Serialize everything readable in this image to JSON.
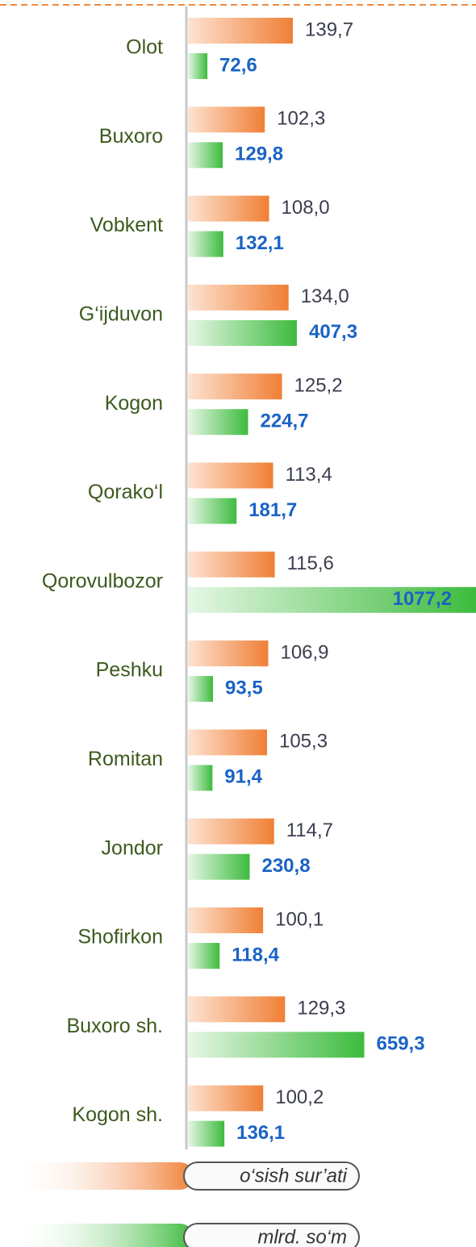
{
  "chart_data": {
    "type": "bar",
    "orientation": "horizontal",
    "categories": [
      "Olot",
      "Buxoro",
      "Vobkent",
      "G‘ijduvon",
      "Kogon",
      "Qorako‘l",
      "Qorovulbozor",
      "Peshku",
      "Romitan",
      "Jondor",
      "Shofirkon",
      "Buxoro sh.",
      "Kogon sh."
    ],
    "series": [
      {
        "name": "o‘sish sur’ati",
        "color": "#f07f35",
        "values": [
          139.7,
          102.3,
          108.0,
          134.0,
          125.2,
          113.4,
          115.6,
          106.9,
          105.3,
          114.7,
          100.1,
          129.3,
          100.2
        ],
        "value_labels": [
          "139,7",
          "102,3",
          "108,0",
          "134,0",
          "125,2",
          "113,4",
          "115,6",
          "106,9",
          "105,3",
          "114,7",
          "100,1",
          "129,3",
          "100,2"
        ]
      },
      {
        "name": "mlrd. so‘m",
        "color": "#3dbb3d",
        "values": [
          72.6,
          129.8,
          132.1,
          407.3,
          224.7,
          181.7,
          1077.2,
          93.5,
          91.4,
          230.8,
          118.4,
          659.3,
          136.1
        ],
        "value_labels": [
          "72,6",
          "129,8",
          "132,1",
          "407,3",
          "224,7",
          "181,7",
          "1077,2",
          "93,5",
          "91,4",
          "230,8",
          "118,4",
          "659,3",
          "136,1"
        ]
      }
    ]
  }
}
